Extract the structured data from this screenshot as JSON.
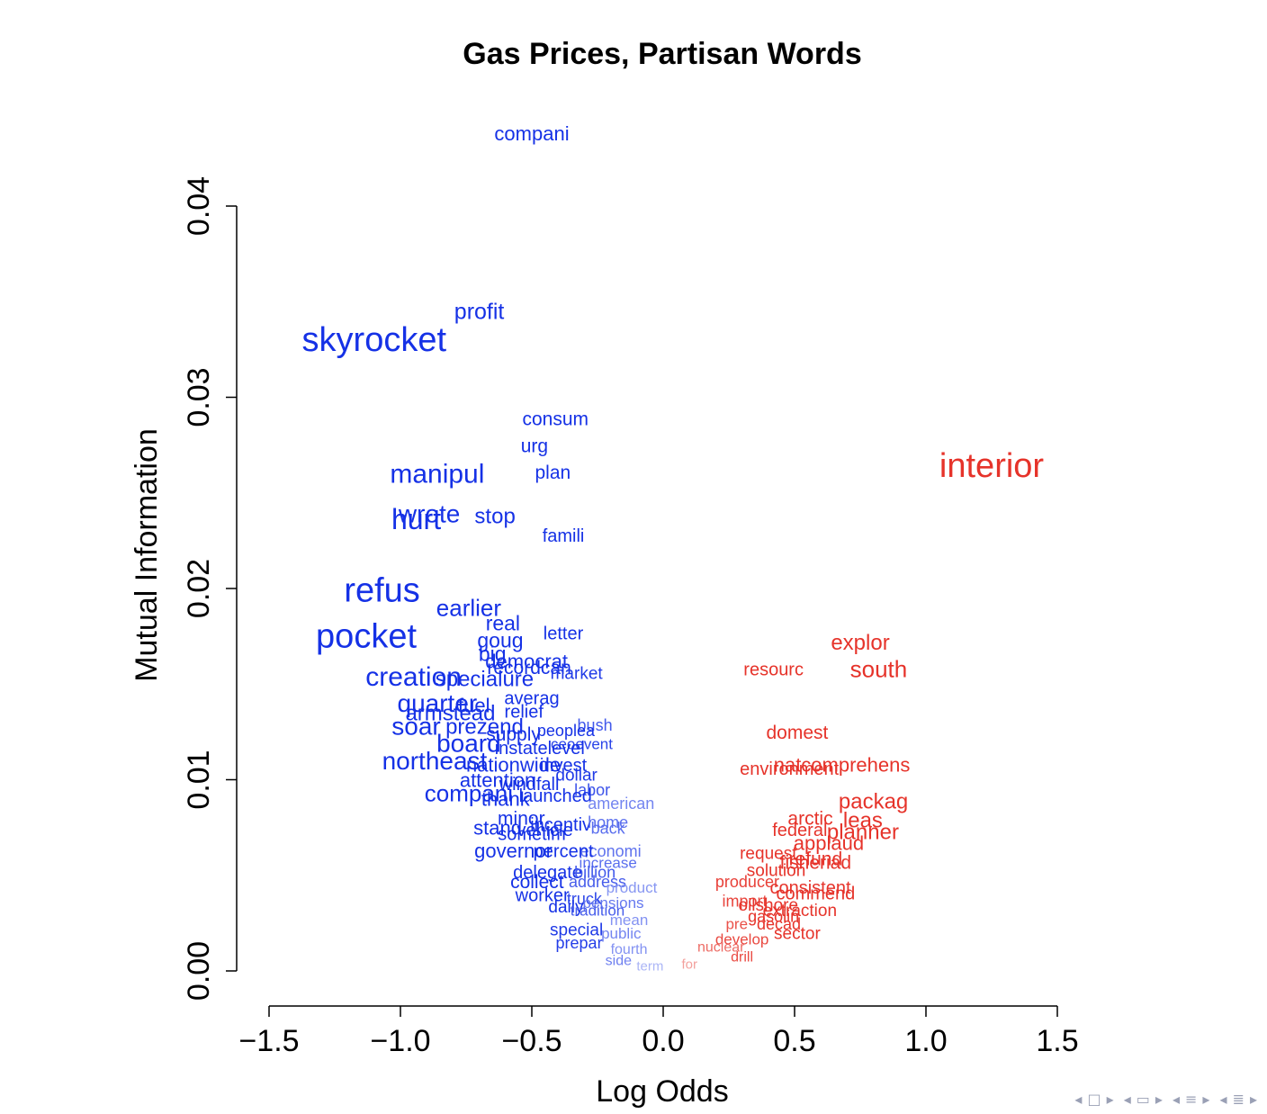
{
  "chart_data": {
    "type": "scatter",
    "title": "Gas Prices, Partisan Words",
    "xlabel": "Log Odds",
    "ylabel": "Mutual Information",
    "xlim": [
      -1.5,
      1.5
    ],
    "ylim": [
      0.0,
      0.04
    ],
    "xticks": [
      "−1.5",
      "−1.0",
      "−0.5",
      "0.0",
      "0.5",
      "1.0",
      "1.5"
    ],
    "yticks": [
      "0.00",
      "0.01",
      "0.02",
      "0.03",
      "0.04"
    ],
    "grid": false,
    "colors": {
      "democrat": "#1531e6",
      "republican": "#e6332a"
    },
    "points": [
      {
        "label": "compani",
        "x": -0.5,
        "y": 0.0437,
        "size": 22
      },
      {
        "label": "profit",
        "x": -0.7,
        "y": 0.0344,
        "size": 25
      },
      {
        "label": "skyrocket",
        "x": -1.1,
        "y": 0.0329,
        "size": 38
      },
      {
        "label": "consum",
        "x": -0.41,
        "y": 0.0288,
        "size": 21
      },
      {
        "label": "urg",
        "x": -0.49,
        "y": 0.0274,
        "size": 21
      },
      {
        "label": "plan",
        "x": -0.42,
        "y": 0.026,
        "size": 21
      },
      {
        "label": "manipul",
        "x": -0.86,
        "y": 0.0259,
        "size": 30
      },
      {
        "label": "hurt",
        "x": -0.94,
        "y": 0.0235,
        "size": 32
      },
      {
        "label": "wrote",
        "x": -0.89,
        "y": 0.0238,
        "size": 28
      },
      {
        "label": "stop",
        "x": -0.64,
        "y": 0.0237,
        "size": 24
      },
      {
        "label": "famili",
        "x": -0.38,
        "y": 0.0227,
        "size": 20
      },
      {
        "label": "refus",
        "x": -1.07,
        "y": 0.0198,
        "size": 38
      },
      {
        "label": "earlier",
        "x": -0.74,
        "y": 0.0189,
        "size": 26
      },
      {
        "label": "real",
        "x": -0.61,
        "y": 0.0181,
        "size": 23
      },
      {
        "label": "pocket",
        "x": -1.13,
        "y": 0.0174,
        "size": 38
      },
      {
        "label": "letter",
        "x": -0.38,
        "y": 0.0176,
        "size": 20
      },
      {
        "label": "goug",
        "x": -0.62,
        "y": 0.0172,
        "size": 23
      },
      {
        "label": "big",
        "x": -0.65,
        "y": 0.0165,
        "size": 23
      },
      {
        "label": "democrat",
        "x": -0.52,
        "y": 0.0161,
        "size": 22
      },
      {
        "label": "recordcan",
        "x": -0.51,
        "y": 0.0158,
        "size": 21
      },
      {
        "label": "market",
        "x": -0.33,
        "y": 0.0155,
        "size": 19
      },
      {
        "label": "creation",
        "x": -0.95,
        "y": 0.0153,
        "size": 30
      },
      {
        "label": "specialure",
        "x": -0.68,
        "y": 0.0152,
        "size": 24
      },
      {
        "label": "averag",
        "x": -0.5,
        "y": 0.0142,
        "size": 20
      },
      {
        "label": "quarter",
        "x": -0.86,
        "y": 0.0139,
        "size": 28
      },
      {
        "label": "fuel",
        "x": -0.72,
        "y": 0.0138,
        "size": 22
      },
      {
        "label": "relief",
        "x": -0.53,
        "y": 0.0135,
        "size": 20
      },
      {
        "label": "armstead",
        "x": -0.81,
        "y": 0.0134,
        "size": 24
      },
      {
        "label": "bush",
        "x": -0.26,
        "y": 0.0128,
        "size": 18
      },
      {
        "label": "soar",
        "x": -0.94,
        "y": 0.0127,
        "size": 28
      },
      {
        "label": "prezend",
        "x": -0.68,
        "y": 0.0127,
        "size": 24
      },
      {
        "label": "supply",
        "x": -0.57,
        "y": 0.0123,
        "size": 21
      },
      {
        "label": "peoplea",
        "x": -0.37,
        "y": 0.0125,
        "size": 18
      },
      {
        "label": "board",
        "x": -0.74,
        "y": 0.0118,
        "size": 28
      },
      {
        "label": "ceoevent",
        "x": -0.31,
        "y": 0.0118,
        "size": 17
      },
      {
        "label": "instatelevel",
        "x": -0.47,
        "y": 0.0116,
        "size": 20
      },
      {
        "label": "northeast",
        "x": -0.87,
        "y": 0.0109,
        "size": 28
      },
      {
        "label": "nationwide",
        "x": -0.57,
        "y": 0.0107,
        "size": 22
      },
      {
        "label": "invest",
        "x": -0.38,
        "y": 0.0107,
        "size": 20
      },
      {
        "label": "dollar",
        "x": -0.33,
        "y": 0.0102,
        "size": 19
      },
      {
        "label": "attention",
        "x": -0.63,
        "y": 0.0099,
        "size": 22
      },
      {
        "label": "windfall",
        "x": -0.51,
        "y": 0.0097,
        "size": 20
      },
      {
        "label": "labor",
        "x": -0.27,
        "y": 0.0094,
        "size": 18
      },
      {
        "label": "compani",
        "x": -0.74,
        "y": 0.0092,
        "size": 26
      },
      {
        "label": "thank",
        "x": -0.6,
        "y": 0.0089,
        "size": 22
      },
      {
        "label": "launched",
        "x": -0.41,
        "y": 0.0091,
        "size": 20
      },
      {
        "label": "american",
        "x": -0.16,
        "y": 0.0087,
        "size": 18
      },
      {
        "label": "minor",
        "x": -0.54,
        "y": 0.0079,
        "size": 21
      },
      {
        "label": "incentiv",
        "x": -0.39,
        "y": 0.0076,
        "size": 20
      },
      {
        "label": "home",
        "x": -0.21,
        "y": 0.0077,
        "size": 18
      },
      {
        "label": "stand",
        "x": -0.63,
        "y": 0.0074,
        "size": 22
      },
      {
        "label": "vehicle",
        "x": -0.45,
        "y": 0.0073,
        "size": 20
      },
      {
        "label": "back",
        "x": -0.21,
        "y": 0.0074,
        "size": 18
      },
      {
        "label": "sometim",
        "x": -0.5,
        "y": 0.0071,
        "size": 20
      },
      {
        "label": "governor",
        "x": -0.57,
        "y": 0.0062,
        "size": 22
      },
      {
        "label": "economi",
        "x": -0.2,
        "y": 0.0062,
        "size": 18
      },
      {
        "label": "percent",
        "x": -0.38,
        "y": 0.0062,
        "size": 20
      },
      {
        "label": "increase",
        "x": -0.21,
        "y": 0.0056,
        "size": 17
      },
      {
        "label": "delegate",
        "x": -0.44,
        "y": 0.0051,
        "size": 20
      },
      {
        "label": "billion",
        "x": -0.26,
        "y": 0.0051,
        "size": 18
      },
      {
        "label": "collect",
        "x": -0.48,
        "y": 0.0046,
        "size": 21
      },
      {
        "label": "address",
        "x": -0.25,
        "y": 0.0046,
        "size": 18
      },
      {
        "label": "product",
        "x": -0.12,
        "y": 0.0043,
        "size": 17
      },
      {
        "label": "worker",
        "x": -0.46,
        "y": 0.0039,
        "size": 20
      },
      {
        "label": "truck",
        "x": -0.3,
        "y": 0.0037,
        "size": 18
      },
      {
        "label": "daily",
        "x": -0.37,
        "y": 0.0033,
        "size": 19
      },
      {
        "label": "pensions",
        "x": -0.19,
        "y": 0.0035,
        "size": 17
      },
      {
        "label": "tradition",
        "x": -0.25,
        "y": 0.0031,
        "size": 17
      },
      {
        "label": "mean",
        "x": -0.13,
        "y": 0.0026,
        "size": 17
      },
      {
        "label": "special",
        "x": -0.33,
        "y": 0.0021,
        "size": 19
      },
      {
        "label": "public",
        "x": -0.16,
        "y": 0.0019,
        "size": 17
      },
      {
        "label": "prepar",
        "x": -0.32,
        "y": 0.0014,
        "size": 18
      },
      {
        "label": "fourth",
        "x": -0.13,
        "y": 0.0011,
        "size": 16
      },
      {
        "label": "side",
        "x": -0.17,
        "y": 0.0005,
        "size": 16
      },
      {
        "label": "term",
        "x": -0.05,
        "y": 0.0002,
        "size": 15
      },
      {
        "label": "interior",
        "x": 1.25,
        "y": 0.0263,
        "size": 38
      },
      {
        "label": "explor",
        "x": 0.75,
        "y": 0.0171,
        "size": 24
      },
      {
        "label": "south",
        "x": 0.82,
        "y": 0.0157,
        "size": 26
      },
      {
        "label": "resourc",
        "x": 0.42,
        "y": 0.0157,
        "size": 20
      },
      {
        "label": "domest",
        "x": 0.51,
        "y": 0.0124,
        "size": 21
      },
      {
        "label": "natcomprehens",
        "x": 0.68,
        "y": 0.0107,
        "size": 22
      },
      {
        "label": "environment",
        "x": 0.48,
        "y": 0.0105,
        "size": 20
      },
      {
        "label": "packag",
        "x": 0.8,
        "y": 0.0088,
        "size": 24
      },
      {
        "label": "arctic",
        "x": 0.56,
        "y": 0.0079,
        "size": 21
      },
      {
        "label": "leas",
        "x": 0.76,
        "y": 0.0078,
        "size": 24
      },
      {
        "label": "federal",
        "x": 0.52,
        "y": 0.0073,
        "size": 20
      },
      {
        "label": "planner",
        "x": 0.76,
        "y": 0.0072,
        "size": 24
      },
      {
        "label": "applaud",
        "x": 0.63,
        "y": 0.0066,
        "size": 22
      },
      {
        "label": "request",
        "x": 0.4,
        "y": 0.0061,
        "size": 19
      },
      {
        "label": "refund",
        "x": 0.58,
        "y": 0.0058,
        "size": 21
      },
      {
        "label": "fisheriad",
        "x": 0.58,
        "y": 0.0056,
        "size": 21
      },
      {
        "label": "solution",
        "x": 0.43,
        "y": 0.0052,
        "size": 19
      },
      {
        "label": "producer",
        "x": 0.32,
        "y": 0.0046,
        "size": 18
      },
      {
        "label": "consistent",
        "x": 0.56,
        "y": 0.0043,
        "size": 20
      },
      {
        "label": "commend",
        "x": 0.58,
        "y": 0.004,
        "size": 20
      },
      {
        "label": "import",
        "x": 0.31,
        "y": 0.0036,
        "size": 18
      },
      {
        "label": "oilshore",
        "x": 0.4,
        "y": 0.0034,
        "size": 19
      },
      {
        "label": "extraction",
        "x": 0.52,
        "y": 0.0031,
        "size": 19
      },
      {
        "label": "gasolin",
        "x": 0.42,
        "y": 0.0028,
        "size": 18
      },
      {
        "label": "decad",
        "x": 0.44,
        "y": 0.0024,
        "size": 18
      },
      {
        "label": "sector",
        "x": 0.51,
        "y": 0.0019,
        "size": 19
      },
      {
        "label": "pre",
        "x": 0.28,
        "y": 0.0024,
        "size": 17
      },
      {
        "label": "develop",
        "x": 0.3,
        "y": 0.0016,
        "size": 17
      },
      {
        "label": "nuclear",
        "x": 0.22,
        "y": 0.0012,
        "size": 16
      },
      {
        "label": "drill",
        "x": 0.3,
        "y": 0.0007,
        "size": 16
      },
      {
        "label": "for",
        "x": 0.1,
        "y": 0.0003,
        "size": 15
      }
    ]
  },
  "nav": {
    "left_arrow": "◂",
    "frame_icon": "□",
    "right_arrow": "▸",
    "multi_frame_icon": "▭",
    "section_icon": "≡",
    "subsection_icon": "≣"
  }
}
